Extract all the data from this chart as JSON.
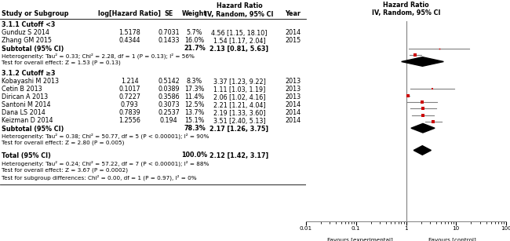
{
  "col_header_hr": "Hazard Ratio",
  "col_header_sub": "IV, Random, 95% CI",
  "studies": [
    {
      "name": "Gunduz S 2014",
      "log_hr": "1.5178",
      "se": "0.7031",
      "weight": "5.7%",
      "hr": 4.56,
      "ci_lo": 1.15,
      "ci_hi": 18.1,
      "year": "2014",
      "group": 1
    },
    {
      "name": "Zhang GM 2015",
      "log_hr": "0.4344",
      "se": "0.1433",
      "weight": "16.0%",
      "hr": 1.54,
      "ci_lo": 1.17,
      "ci_hi": 2.04,
      "year": "2015",
      "group": 1
    },
    {
      "name": "Kobayashi M 2013",
      "log_hr": "1.214",
      "se": "0.5142",
      "weight": "8.3%",
      "hr": 3.37,
      "ci_lo": 1.23,
      "ci_hi": 9.22,
      "year": "2013",
      "group": 2
    },
    {
      "name": "Cetin B 2013",
      "log_hr": "0.1017",
      "se": "0.0389",
      "weight": "17.3%",
      "hr": 1.11,
      "ci_lo": 1.03,
      "ci_hi": 1.19,
      "year": "2013",
      "group": 2
    },
    {
      "name": "Dirican A 2013",
      "log_hr": "0.7227",
      "se": "0.3586",
      "weight": "11.4%",
      "hr": 2.06,
      "ci_lo": 1.02,
      "ci_hi": 4.16,
      "year": "2013",
      "group": 2
    },
    {
      "name": "Santoni M 2014",
      "log_hr": "0.793",
      "se": "0.3073",
      "weight": "12.5%",
      "hr": 2.21,
      "ci_lo": 1.21,
      "ci_hi": 4.04,
      "year": "2014",
      "group": 2
    },
    {
      "name": "Dana LS 2014",
      "log_hr": "0.7839",
      "se": "0.2537",
      "weight": "13.7%",
      "hr": 2.19,
      "ci_lo": 1.33,
      "ci_hi": 3.6,
      "year": "2014",
      "group": 2
    },
    {
      "name": "Keizman D 2014",
      "log_hr": "1.2556",
      "se": "0.194",
      "weight": "15.1%",
      "hr": 3.51,
      "ci_lo": 2.4,
      "ci_hi": 5.13,
      "year": "2014",
      "group": 2
    }
  ],
  "subtotal1": {
    "weight": "21.7%",
    "hr": 2.13,
    "ci_lo": 0.81,
    "ci_hi": 5.63
  },
  "subtotal2": {
    "weight": "78.3%",
    "hr": 2.17,
    "ci_lo": 1.26,
    "ci_hi": 3.75
  },
  "total": {
    "weight": "100.0%",
    "hr": 2.12,
    "ci_lo": 1.42,
    "ci_hi": 3.17
  },
  "heterogeneity1": "Heterogeneity: Tau² = 0.33; Chi² = 2.28, df = 1 (P = 0.13); I² = 56%",
  "overall1": "Test for overall effect: Z = 1.53 (P = 0.13)",
  "heterogeneity2": "Heterogeneity: Tau² = 0.38; Chi² = 50.77, df = 5 (P < 0.00001); I² = 90%",
  "overall2": "Test for overall effect: Z = 2.80 (P = 0.005)",
  "heterogeneity_total": "Heterogeneity: Tau² = 0.24; Chi² = 57.22, df = 7 (P < 0.00001); I² = 88%",
  "overall_total": "Test for overall effect: Z = 3.67 (P = 0.0002)",
  "subgroup_test": "Test for subgroup differences: Chi² = 0.00, df = 1 (P = 0.97), I² = 0%",
  "x_min": 0.01,
  "x_max": 100,
  "x_ticks": [
    0.01,
    0.1,
    1,
    10,
    100
  ],
  "x_label_left": "Favours [experimental]",
  "x_label_right": "Favours [control]",
  "line_color": "#808080",
  "point_color": "#cc0000",
  "diamond_color": "#000000",
  "text_color": "#000000",
  "bg_color": "#ffffff"
}
